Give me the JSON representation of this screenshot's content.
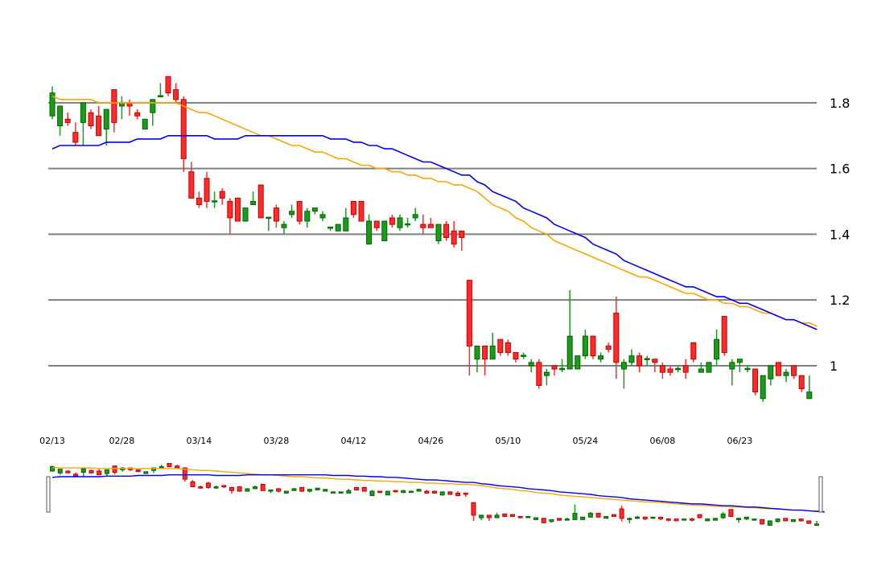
{
  "chart_data": {
    "type": "candlestick",
    "title": "",
    "xlabel": "",
    "ylabel": "",
    "ylim": [
      0.88,
      1.9
    ],
    "y_ticks": [
      1,
      1.2,
      1.4,
      1.6,
      1.8
    ],
    "y_tick_labels": [
      "1",
      "1.2",
      "1.4",
      "1.6",
      "1.8"
    ],
    "x_tick_labels": [
      "02/13",
      "02/28",
      "03/14",
      "03/28",
      "04/12",
      "04/26",
      "05/10",
      "05/24",
      "06/08",
      "06/23"
    ],
    "x_tick_positions": [
      0,
      9,
      19,
      29,
      39,
      49,
      59,
      69,
      79,
      89
    ],
    "grid": "horizontal",
    "y_axis_position": "right",
    "navigator": true,
    "colors": {
      "up": "#1a9b1a",
      "up_border": "#006400",
      "down": "#ff2b2b",
      "down_border": "#c00000",
      "ma_fast": "#ffa500",
      "ma_slow": "#0000ee",
      "grid": "#808080"
    },
    "candles": [
      [
        1.76,
        1.83,
        1.75,
        1.85
      ],
      [
        1.73,
        1.79,
        1.7,
        1.79
      ],
      [
        1.75,
        1.74,
        1.73,
        1.77
      ],
      [
        1.71,
        1.68,
        1.67,
        1.74
      ],
      [
        1.74,
        1.8,
        1.67,
        1.8
      ],
      [
        1.77,
        1.73,
        1.72,
        1.78
      ],
      [
        1.76,
        1.7,
        1.7,
        1.79
      ],
      [
        1.72,
        1.78,
        1.67,
        1.78
      ],
      [
        1.84,
        1.74,
        1.71,
        1.84
      ],
      [
        1.79,
        1.8,
        1.75,
        1.82
      ],
      [
        1.8,
        1.79,
        1.76,
        1.81
      ],
      [
        1.77,
        1.76,
        1.75,
        1.78
      ],
      [
        1.72,
        1.75,
        1.72,
        1.75
      ],
      [
        1.77,
        1.81,
        1.73,
        1.81
      ],
      [
        1.82,
        1.82,
        1.82,
        1.86
      ],
      [
        1.88,
        1.83,
        1.82,
        1.88
      ],
      [
        1.84,
        1.81,
        1.8,
        1.86
      ],
      [
        1.81,
        1.63,
        1.59,
        1.82
      ],
      [
        1.59,
        1.51,
        1.51,
        1.62
      ],
      [
        1.51,
        1.49,
        1.48,
        1.53
      ],
      [
        1.57,
        1.5,
        1.48,
        1.59
      ],
      [
        1.5,
        1.5,
        1.48,
        1.53
      ],
      [
        1.53,
        1.51,
        1.49,
        1.54
      ],
      [
        1.5,
        1.45,
        1.4,
        1.51
      ],
      [
        1.51,
        1.44,
        1.44,
        1.51
      ],
      [
        1.44,
        1.48,
        1.44,
        1.48
      ],
      [
        1.49,
        1.5,
        1.49,
        1.53
      ],
      [
        1.55,
        1.45,
        1.45,
        1.55
      ],
      [
        1.45,
        1.45,
        1.41,
        1.45
      ],
      [
        1.48,
        1.44,
        1.42,
        1.49
      ],
      [
        1.42,
        1.43,
        1.4,
        1.44
      ],
      [
        1.46,
        1.47,
        1.45,
        1.49
      ],
      [
        1.5,
        1.44,
        1.43,
        1.5
      ],
      [
        1.44,
        1.47,
        1.42,
        1.48
      ],
      [
        1.47,
        1.48,
        1.46,
        1.48
      ],
      [
        1.45,
        1.46,
        1.44,
        1.47
      ],
      [
        1.42,
        1.42,
        1.41,
        1.42
      ],
      [
        1.41,
        1.43,
        1.41,
        1.43
      ],
      [
        1.41,
        1.45,
        1.41,
        1.48
      ],
      [
        1.5,
        1.46,
        1.45,
        1.5
      ],
      [
        1.5,
        1.44,
        1.44,
        1.5
      ],
      [
        1.37,
        1.44,
        1.37,
        1.46
      ],
      [
        1.44,
        1.42,
        1.41,
        1.44
      ],
      [
        1.38,
        1.44,
        1.38,
        1.44
      ],
      [
        1.45,
        1.43,
        1.42,
        1.46
      ],
      [
        1.42,
        1.45,
        1.41,
        1.46
      ],
      [
        1.43,
        1.43,
        1.42,
        1.45
      ],
      [
        1.45,
        1.46,
        1.44,
        1.48
      ],
      [
        1.43,
        1.42,
        1.4,
        1.46
      ],
      [
        1.43,
        1.42,
        1.42,
        1.45
      ],
      [
        1.38,
        1.43,
        1.37,
        1.43
      ],
      [
        1.43,
        1.39,
        1.38,
        1.44
      ],
      [
        1.41,
        1.37,
        1.36,
        1.44
      ],
      [
        1.41,
        1.39,
        1.35,
        1.41
      ],
      [
        1.26,
        1.06,
        0.97,
        1.26
      ],
      [
        1.02,
        1.06,
        0.98,
        1.06
      ],
      [
        1.06,
        1.02,
        0.97,
        1.06
      ],
      [
        1.02,
        1.06,
        1.02,
        1.1
      ],
      [
        1.08,
        1.04,
        1.03,
        1.08
      ],
      [
        1.07,
        1.04,
        1.03,
        1.08
      ],
      [
        1.04,
        1.02,
        1.01,
        1.04
      ],
      [
        1.03,
        1.03,
        1.02,
        1.04
      ],
      [
        1.0,
        1.01,
        0.98,
        1.02
      ],
      [
        1.01,
        0.94,
        0.93,
        1.02
      ],
      [
        0.97,
        0.98,
        0.94,
        0.99
      ],
      [
        1.0,
        0.99,
        0.97,
        1.0
      ],
      [
        0.99,
        0.99,
        0.98,
        1.02
      ],
      [
        0.99,
        1.09,
        0.99,
        1.23
      ],
      [
        0.99,
        1.03,
        0.99,
        1.03
      ],
      [
        1.03,
        1.09,
        1.02,
        1.11
      ],
      [
        1.09,
        1.03,
        1.02,
        1.09
      ],
      [
        1.02,
        1.03,
        1.01,
        1.04
      ],
      [
        1.06,
        1.05,
        1.04,
        1.07
      ],
      [
        1.16,
        1.01,
        0.96,
        1.21
      ],
      [
        0.99,
        1.01,
        0.93,
        1.02
      ],
      [
        1.01,
        1.03,
        1.0,
        1.05
      ],
      [
        1.03,
        1.0,
        0.98,
        1.04
      ],
      [
        1.02,
        1.02,
        1.0,
        1.03
      ],
      [
        1.02,
        1.01,
        0.98,
        1.02
      ],
      [
        1.0,
        0.98,
        0.96,
        1.01
      ],
      [
        0.99,
        0.98,
        0.97,
        1.0
      ],
      [
        0.99,
        0.99,
        0.98,
        1.0
      ],
      [
        1.0,
        0.98,
        0.96,
        1.02
      ],
      [
        1.07,
        1.02,
        1.01,
        1.07
      ],
      [
        0.98,
        0.99,
        0.98,
        1.01
      ],
      [
        0.98,
        1.01,
        0.98,
        1.01
      ],
      [
        1.02,
        1.08,
        1.0,
        1.11
      ],
      [
        1.15,
        1.04,
        1.03,
        1.15
      ],
      [
        0.99,
        1.01,
        0.94,
        1.02
      ],
      [
        1.01,
        1.02,
        0.98,
        1.02
      ],
      [
        0.99,
        0.99,
        0.98,
        1.0
      ],
      [
        0.99,
        0.92,
        0.91,
        0.99
      ],
      [
        0.9,
        0.97,
        0.89,
        0.97
      ],
      [
        0.96,
        1.0,
        0.94,
        1.0
      ],
      [
        1.01,
        0.97,
        0.97,
        1.01
      ],
      [
        0.97,
        0.98,
        0.95,
        0.99
      ],
      [
        1.0,
        0.97,
        0.96,
        1.0
      ],
      [
        0.97,
        0.93,
        0.92,
        0.97
      ],
      [
        0.9,
        0.92,
        0.9,
        0.97
      ]
    ],
    "candle_fields": [
      "open",
      "close",
      "low",
      "high"
    ],
    "series": [
      {
        "color": "#ffa500",
        "values": [
          1.82,
          1.81,
          1.81,
          1.81,
          1.81,
          1.81,
          1.8,
          1.8,
          1.8,
          1.8,
          1.8,
          1.8,
          1.8,
          1.8,
          1.8,
          1.8,
          1.8,
          1.79,
          1.78,
          1.77,
          1.77,
          1.76,
          1.75,
          1.74,
          1.73,
          1.72,
          1.71,
          1.7,
          1.7,
          1.69,
          1.68,
          1.67,
          1.67,
          1.66,
          1.65,
          1.65,
          1.64,
          1.63,
          1.63,
          1.62,
          1.61,
          1.61,
          1.6,
          1.6,
          1.59,
          1.59,
          1.58,
          1.58,
          1.57,
          1.57,
          1.56,
          1.56,
          1.55,
          1.55,
          1.54,
          1.53,
          1.51,
          1.49,
          1.48,
          1.47,
          1.45,
          1.44,
          1.42,
          1.41,
          1.4,
          1.38,
          1.37,
          1.36,
          1.35,
          1.34,
          1.33,
          1.32,
          1.31,
          1.3,
          1.29,
          1.28,
          1.27,
          1.27,
          1.26,
          1.25,
          1.24,
          1.23,
          1.22,
          1.22,
          1.21,
          1.2,
          1.2,
          1.19,
          1.19,
          1.18,
          1.18,
          1.17,
          1.16,
          1.16,
          1.15,
          1.14,
          1.14,
          1.13,
          1.13,
          1.12
        ]
      },
      {
        "color": "#0000ee",
        "values": [
          1.66,
          1.67,
          1.67,
          1.67,
          1.67,
          1.67,
          1.67,
          1.68,
          1.68,
          1.68,
          1.68,
          1.69,
          1.69,
          1.69,
          1.69,
          1.7,
          1.7,
          1.7,
          1.7,
          1.7,
          1.7,
          1.69,
          1.69,
          1.69,
          1.69,
          1.7,
          1.7,
          1.7,
          1.7,
          1.7,
          1.7,
          1.7,
          1.7,
          1.7,
          1.7,
          1.7,
          1.69,
          1.69,
          1.69,
          1.68,
          1.68,
          1.67,
          1.67,
          1.66,
          1.66,
          1.65,
          1.64,
          1.63,
          1.62,
          1.62,
          1.61,
          1.6,
          1.59,
          1.58,
          1.58,
          1.56,
          1.55,
          1.53,
          1.52,
          1.51,
          1.5,
          1.48,
          1.47,
          1.46,
          1.45,
          1.43,
          1.42,
          1.41,
          1.4,
          1.39,
          1.37,
          1.36,
          1.35,
          1.34,
          1.32,
          1.31,
          1.3,
          1.29,
          1.28,
          1.27,
          1.26,
          1.25,
          1.24,
          1.24,
          1.23,
          1.22,
          1.21,
          1.21,
          1.2,
          1.19,
          1.19,
          1.18,
          1.17,
          1.16,
          1.15,
          1.14,
          1.14,
          1.13,
          1.12,
          1.11
        ]
      }
    ]
  }
}
